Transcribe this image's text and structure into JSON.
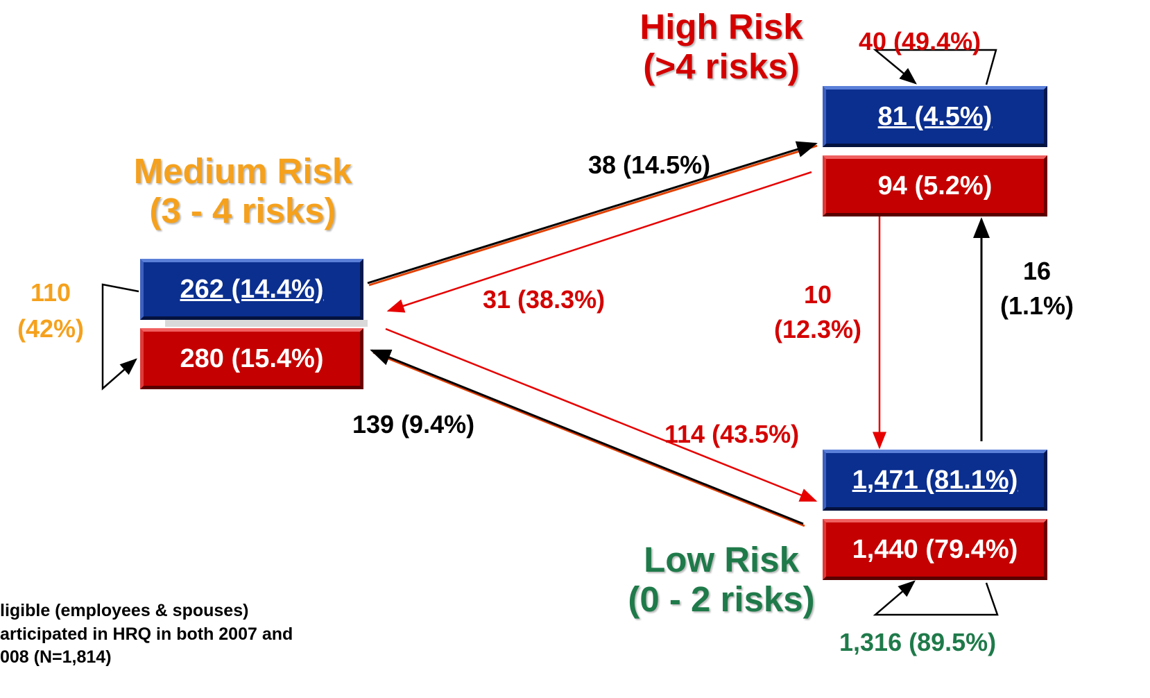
{
  "nodes": {
    "high": {
      "title_line1": "High Risk",
      "title_line2": "(>4 risks)",
      "before": "81 (4.5%)",
      "after": "94 (5.2%)",
      "stay": "40 (49.4%)",
      "title_color": "#d40000"
    },
    "medium": {
      "title_line1": "Medium Risk",
      "title_line2": "(3 - 4 risks)",
      "before": "262 (14.4%)",
      "after": "280 (15.4%)",
      "stay_line1": "110",
      "stay_line2": "(42%)",
      "title_color": "#f5a11d"
    },
    "low": {
      "title_line1": "Low Risk",
      "title_line2": "(0 - 2 risks)",
      "before": "1,471 (81.1%)",
      "after": "1,440 (79.4%)",
      "stay": "1,316 (89.5%)",
      "title_color": "#1f7a4a"
    }
  },
  "flows": {
    "medium_to_high": "38 (14.5%)",
    "high_to_medium": "31 (38.3%)",
    "high_to_low_line1": "10",
    "high_to_low_line2": "(12.3%)",
    "low_to_high_line1": "16",
    "low_to_high_line2": "(1.1%)",
    "low_to_medium": "139 (9.4%)",
    "medium_to_low": "114 (43.5%)"
  },
  "footnote": {
    "line1": "ligible (employees & spouses)",
    "line2": "articipated in HRQ in both 2007 and",
    "line3": "008 (N=1,814)"
  },
  "colors": {
    "improve_arrow": "#e60000",
    "worsen_arrow": "#000000",
    "box_blue": "#0b2f8f",
    "box_red": "#c40000"
  }
}
